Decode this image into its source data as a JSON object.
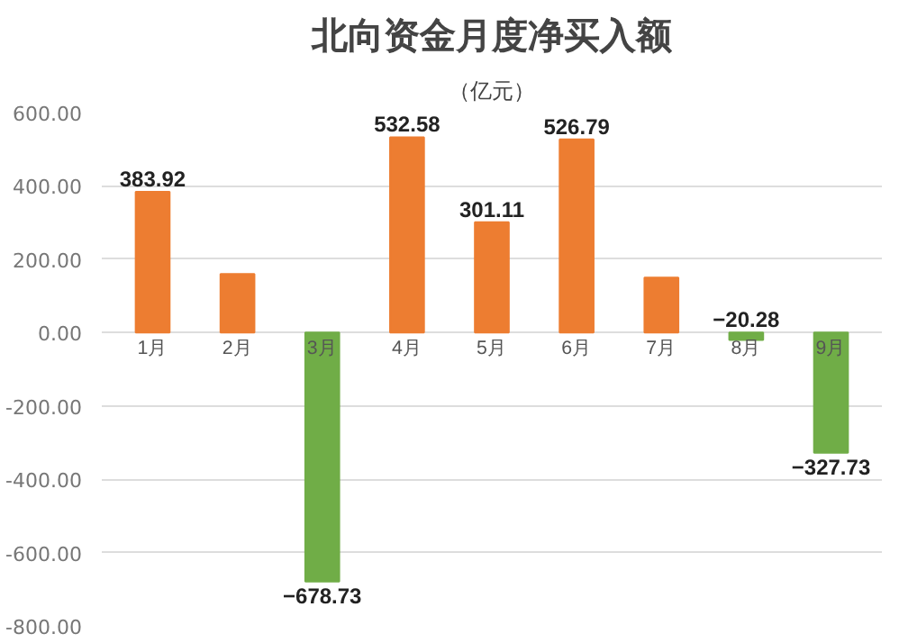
{
  "chart_data": {
    "type": "bar",
    "title": "北向资金月度净买入额",
    "subtitle": "（亿元）",
    "categories": [
      "1月",
      "2月",
      "3月",
      "4月",
      "5月",
      "6月",
      "7月",
      "8月",
      "9月"
    ],
    "values": [
      383.92,
      160,
      -678.73,
      532.58,
      301.11,
      526.79,
      150,
      -20.28,
      -327.73
    ],
    "colors": [
      "#ed7d31",
      "#ed7d31",
      "#70ad47",
      "#ed7d31",
      "#ed7d31",
      "#ed7d31",
      "#ed7d31",
      "#70ad47",
      "#70ad47"
    ],
    "value_labels": [
      "383.92",
      null,
      "−678.73",
      "532.58",
      "301.11",
      "526.79",
      null,
      "−20.28",
      "−327.73"
    ],
    "ylim": [
      -800,
      600
    ],
    "yticks": [
      {
        "value": -800,
        "label": "-800.00"
      },
      {
        "value": -600,
        "label": "-600.00"
      },
      {
        "value": -400,
        "label": "-400.00"
      },
      {
        "value": -200,
        "label": "-200.00"
      },
      {
        "value": 0,
        "label": "0.00"
      },
      {
        "value": 200,
        "label": "200.00"
      },
      {
        "value": 400,
        "label": "400.00"
      },
      {
        "value": 600,
        "label": "600.00"
      }
    ],
    "grid": "y"
  }
}
